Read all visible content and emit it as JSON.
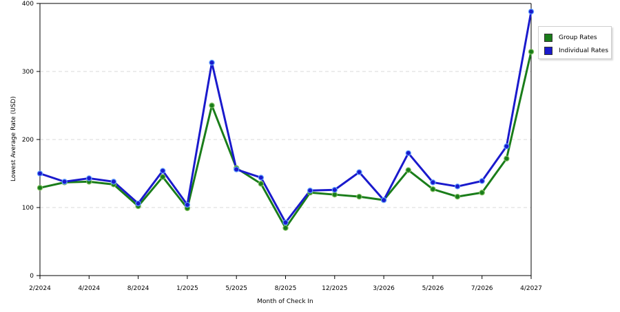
{
  "chart_data": {
    "type": "line",
    "title": "",
    "xlabel": "Month of Check In",
    "ylabel": "Lowest Average Rate (USD)",
    "ylim": [
      0,
      400
    ],
    "yticks": [
      "0",
      "100",
      "200",
      "300",
      "400"
    ],
    "grid": true,
    "legend_position": "top-right",
    "x_tick_labels": [
      "2/2024",
      "4/2024",
      "8/2024",
      "1/2025",
      "5/2025",
      "8/2025",
      "12/2025",
      "3/2026",
      "5/2026",
      "7/2026",
      "4/2027"
    ],
    "series": [
      {
        "name": "Group Rates",
        "color": "#1a7d1a",
        "values": [
          129,
          137,
          138,
          134,
          102,
          145,
          99,
          250,
          158,
          135,
          70,
          122,
          119,
          116,
          111,
          155,
          127,
          116,
          122,
          172,
          329
        ]
      },
      {
        "name": "Individual Rates",
        "color": "#1a1acc",
        "values": [
          150,
          138,
          143,
          138,
          106,
          154,
          104,
          313,
          156,
          144,
          78,
          125,
          126,
          152,
          111,
          180,
          137,
          131,
          139,
          190,
          388
        ]
      }
    ]
  }
}
